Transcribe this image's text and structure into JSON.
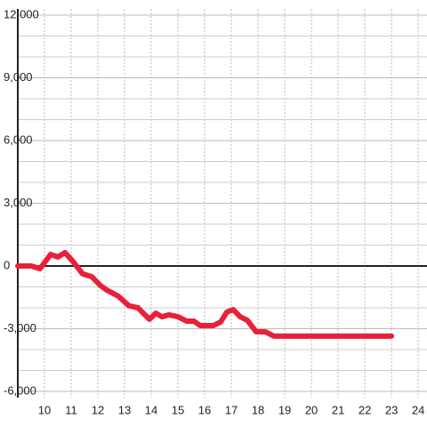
{
  "chart_data": {
    "type": "line",
    "color": "#e8203a",
    "x": [
      9,
      9.5,
      9.83,
      10.23,
      10.5,
      10.77,
      11.07,
      11.43,
      11.77,
      12.1,
      12.33,
      12.77,
      13.17,
      13.5,
      13.93,
      14.17,
      14.4,
      14.67,
      15,
      15.33,
      15.6,
      15.83,
      16.33,
      16.6,
      16.83,
      17.07,
      17.33,
      17.6,
      17.93,
      18.27,
      18.6,
      23
    ],
    "values": [
      0,
      0,
      -130,
      550,
      430,
      640,
      210,
      -380,
      -510,
      -940,
      -1150,
      -1450,
      -1910,
      -2000,
      -2550,
      -2260,
      -2430,
      -2340,
      -2430,
      -2640,
      -2640,
      -2850,
      -2850,
      -2680,
      -2210,
      -2090,
      -2430,
      -2600,
      -3150,
      -3150,
      -3360,
      -3360
    ],
    "xlim": [
      9,
      24.33
    ],
    "xticks": [
      10,
      11,
      12,
      13,
      14,
      15,
      16,
      17,
      18,
      19,
      20,
      21,
      22,
      23,
      24
    ],
    "ylim": [
      -6300,
      12300
    ],
    "yticks": [
      {
        "value": 12000,
        "label": "12,000"
      },
      {
        "value": 9000,
        "label": "9,000"
      },
      {
        "value": 6000,
        "label": "6,000"
      },
      {
        "value": 3000,
        "label": "3,000"
      },
      0,
      {
        "value": -3000,
        "label": "-3,000"
      },
      {
        "value": -6000,
        "label": "-6,000"
      }
    ],
    "yminor": [
      11000,
      10000,
      8000,
      7000,
      5000,
      4000,
      2000,
      1000,
      -1000,
      -2000,
      -4000,
      -5000
    ],
    "grid": true
  }
}
